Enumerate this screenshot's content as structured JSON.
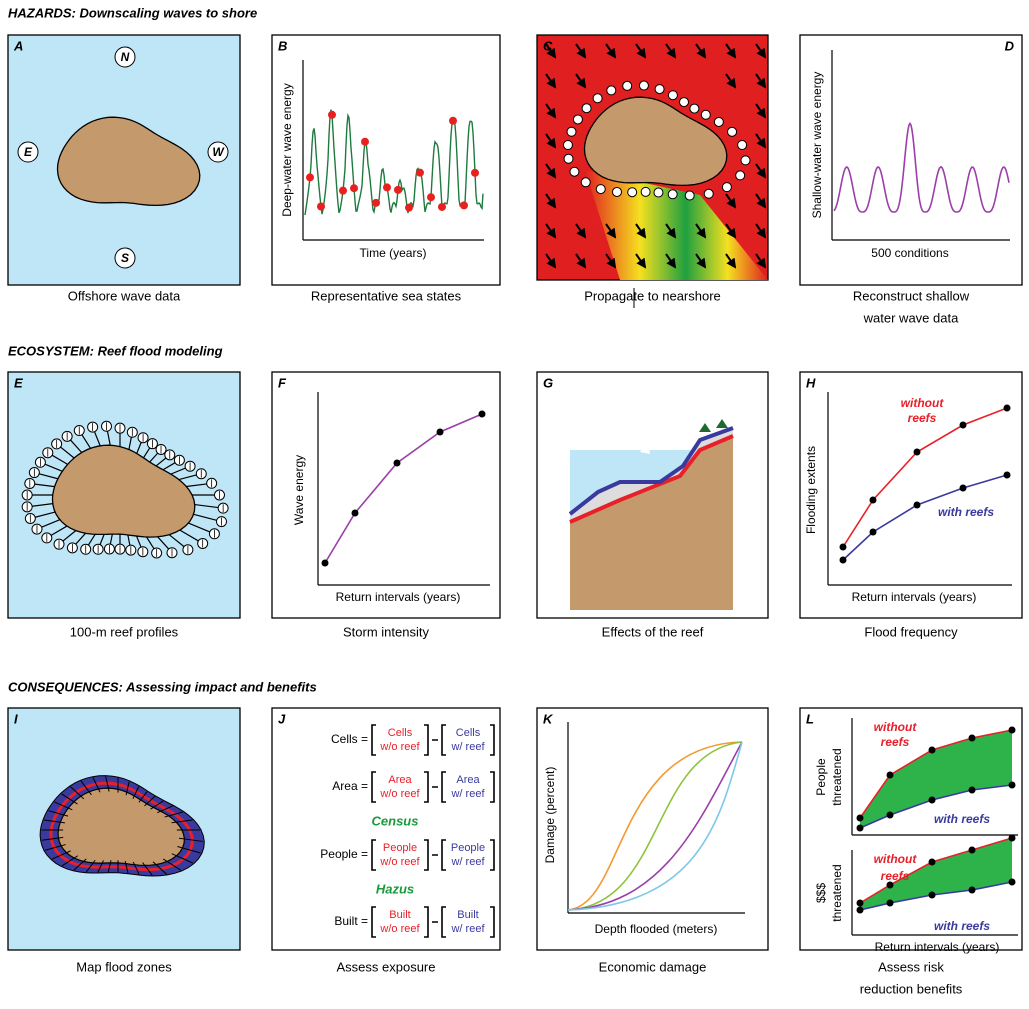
{
  "sections": [
    {
      "title": "HAZARDS: Downscaling waves to shore",
      "panels": [
        {
          "letter": "A",
          "caption": [
            "Offshore wave data"
          ],
          "labels": [
            "N",
            "E",
            "W",
            "S"
          ]
        },
        {
          "letter": "B",
          "caption": [
            "Representative sea states"
          ],
          "y_label": "Deep-water wave energy",
          "x_label": "Time (years)"
        },
        {
          "letter": "C",
          "caption": [
            "Propagate to nearshore"
          ]
        },
        {
          "letter": "D",
          "caption": [
            "Reconstruct shallow",
            "water wave data"
          ],
          "y_label": "Shallow-water wave energy",
          "x_label": "500 conditions"
        }
      ]
    },
    {
      "title": "ECOSYSTEM: Reef flood modeling",
      "panels": [
        {
          "letter": "E",
          "caption": [
            "100-m reef profiles"
          ]
        },
        {
          "letter": "F",
          "caption": [
            "Storm intensity"
          ],
          "y_label": "Wave energy",
          "x_label": "Return intervals (years)"
        },
        {
          "letter": "G",
          "caption": [
            "Effects of the reef"
          ]
        },
        {
          "letter": "H",
          "caption": [
            "Flood frequency"
          ],
          "y_label": "Flooding extents",
          "x_label": "Return intervals (years)",
          "without": [
            "without",
            "reefs"
          ],
          "with": "with reefs"
        }
      ]
    },
    {
      "title": "CONSEQUENCES: Assessing impact and benefits",
      "panels": [
        {
          "letter": "I",
          "caption": [
            "Map flood zones"
          ]
        },
        {
          "letter": "J",
          "caption": [
            "Assess exposure"
          ],
          "rows": [
            {
              "label": "Cells =",
              "minuend": [
                "Cells",
                "w/o reef"
              ],
              "subtrahend": [
                "Cells",
                "w/ reef"
              ]
            },
            {
              "label": "Area =",
              "minuend": [
                "Area",
                "w/o reef"
              ],
              "subtrahend": [
                "Area",
                "w/ reef"
              ]
            },
            {
              "heading": "Census"
            },
            {
              "label": "People =",
              "minuend": [
                "People",
                "w/o reef"
              ],
              "subtrahend": [
                "People",
                "w/ reef"
              ]
            },
            {
              "heading": "Hazus"
            },
            {
              "label": "Built =",
              "minuend": [
                "Built",
                "w/o reef"
              ],
              "subtrahend": [
                "Built",
                "w/ reef"
              ]
            }
          ]
        },
        {
          "letter": "K",
          "caption": [
            "Economic damage"
          ],
          "y_label": "Damage (percent)",
          "x_label": "Depth flooded (meters)"
        },
        {
          "letter": "L",
          "caption": [
            "Assess risk",
            "reduction benefits"
          ],
          "x_label": "Return intervals (years)",
          "plots": [
            {
              "y_label": [
                "People",
                "threatened"
              ],
              "without": [
                "without",
                "reefs"
              ],
              "with": "with reefs"
            },
            {
              "y_label": [
                "$$$",
                "threatened"
              ],
              "without": [
                "without",
                "reefs"
              ],
              "with": "with reefs"
            }
          ]
        }
      ]
    }
  ]
}
